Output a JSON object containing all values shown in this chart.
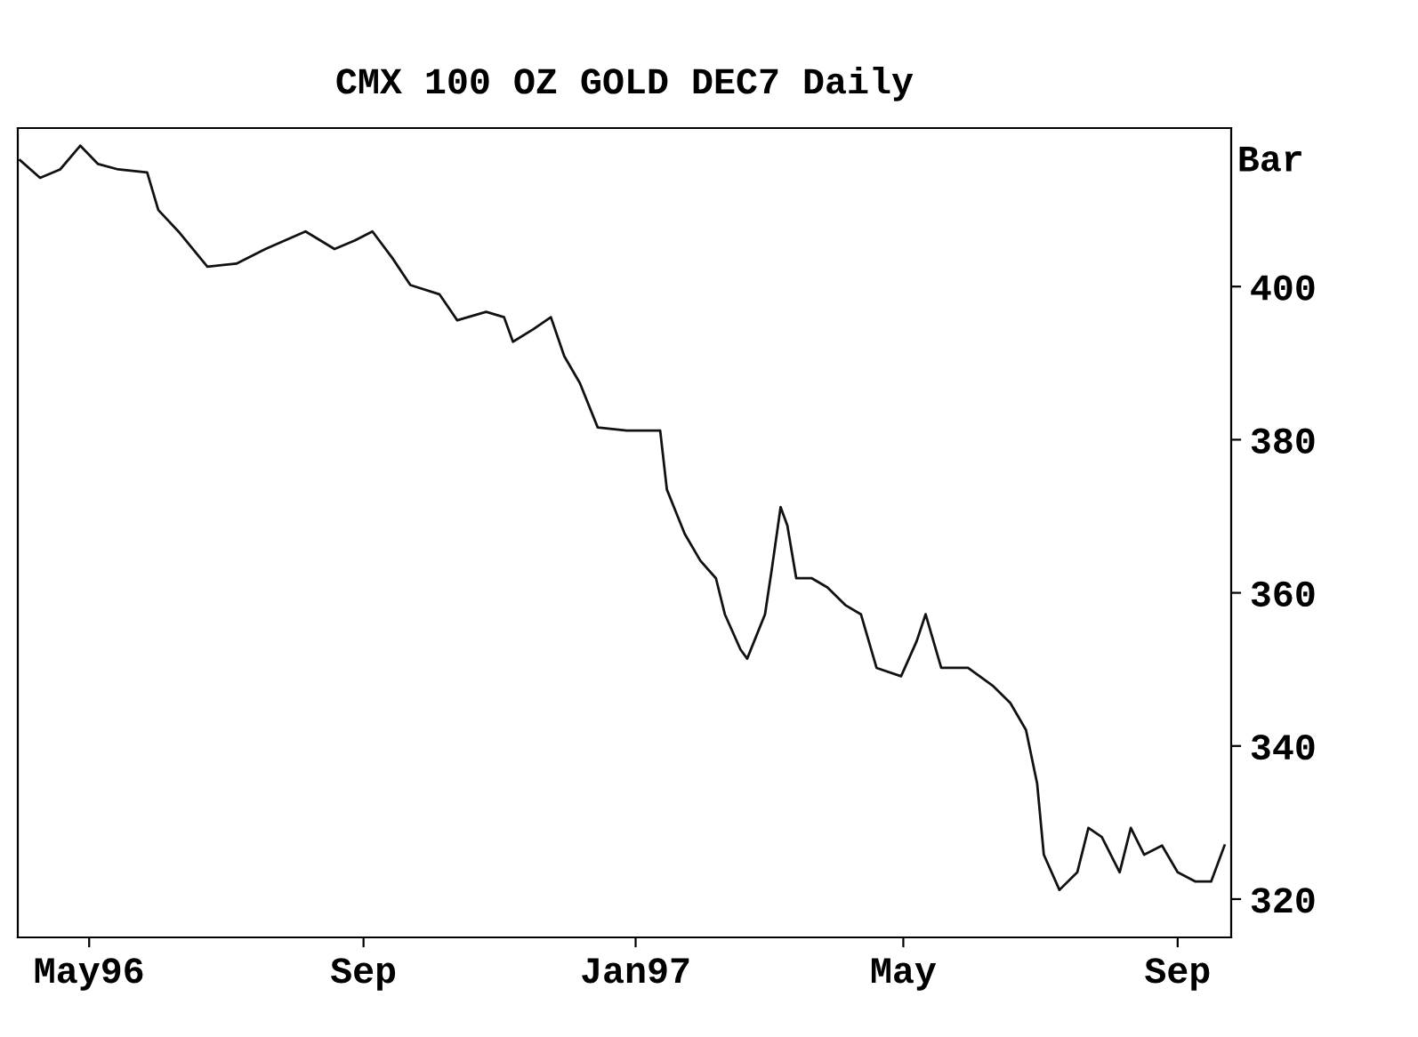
{
  "chart_data": {
    "type": "line",
    "title": "CMX 100 OZ GOLD DEC7 Daily",
    "ylabel": "Bar",
    "x": [
      "1996-03-31",
      "1996-04-09",
      "1996-04-18",
      "1996-04-27",
      "1996-05-05",
      "1996-05-14",
      "1996-05-27",
      "1996-06-01",
      "1996-06-10",
      "1996-06-23",
      "1996-07-06",
      "1996-07-19",
      "1996-08-06",
      "1996-08-19",
      "1996-08-28",
      "1996-09-05",
      "1996-09-14",
      "1996-09-22",
      "1996-10-05",
      "1996-10-13",
      "1996-10-26",
      "1996-11-03",
      "1996-11-07",
      "1996-11-16",
      "1996-11-24",
      "1996-11-30",
      "1996-12-07",
      "1996-12-15",
      "1996-12-28",
      "1997-01-12",
      "1997-01-15",
      "1997-01-23",
      "1997-01-30",
      "1997-02-06",
      "1997-02-10",
      "1997-02-17",
      "1997-02-20",
      "1997-02-28",
      "1997-03-03",
      "1997-03-07",
      "1997-03-10",
      "1997-03-14",
      "1997-03-21",
      "1997-03-28",
      "1997-04-05",
      "1997-04-12",
      "1997-04-19",
      "1997-04-30",
      "1997-05-07",
      "1997-05-11",
      "1997-05-18",
      "1997-05-30",
      "1997-06-10",
      "1997-06-18",
      "1997-06-25",
      "1997-06-30",
      "1997-07-03",
      "1997-07-10",
      "1997-07-18",
      "1997-07-23",
      "1997-07-29",
      "1997-08-06",
      "1997-08-11",
      "1997-08-17",
      "1997-08-25",
      "1997-09-01",
      "1997-09-09",
      "1997-09-16",
      "1997-09-22"
    ],
    "series": [
      {
        "color": "#111111",
        "values": [
          416.5,
          414.2,
          415.3,
          418.4,
          416,
          415.3,
          414.9,
          410,
          407.2,
          402.6,
          403,
          404.9,
          407.2,
          404.9,
          406,
          407.2,
          403.7,
          400.2,
          399,
          395.6,
          396.7,
          396,
          392.8,
          394.4,
          396,
          390.9,
          387.4,
          381.6,
          381.2,
          381.2,
          373.5,
          367.7,
          364.2,
          361.9,
          357.2,
          352.6,
          351.4,
          357.2,
          363,
          371.2,
          368.8,
          361.9,
          361.9,
          360.7,
          358.4,
          357.2,
          350.2,
          349.1,
          353.7,
          357.2,
          350.2,
          350.2,
          347.9,
          345.6,
          342.1,
          335.1,
          325.8,
          321.2,
          323.5,
          329.3,
          328.1,
          323.5,
          329.3,
          325.8,
          327,
          323.5,
          322.3,
          322.3,
          327
        ]
      }
    ],
    "xlim": [
      "1996-03-30",
      "1997-09-25"
    ],
    "xticks": [
      {
        "value": "1996-05-01",
        "label": "May96"
      },
      {
        "value": "1996-09-01",
        "label": "Sep"
      },
      {
        "value": "1997-01-01",
        "label": "Jan97"
      },
      {
        "value": "1997-05-01",
        "label": "May"
      },
      {
        "value": "1997-09-01",
        "label": "Sep"
      }
    ],
    "ylim": [
      315,
      420.7
    ],
    "yticks": [
      320,
      340,
      360,
      380,
      400
    ],
    "grid": false,
    "legend": false,
    "marker": "none",
    "line_style": "solid"
  }
}
